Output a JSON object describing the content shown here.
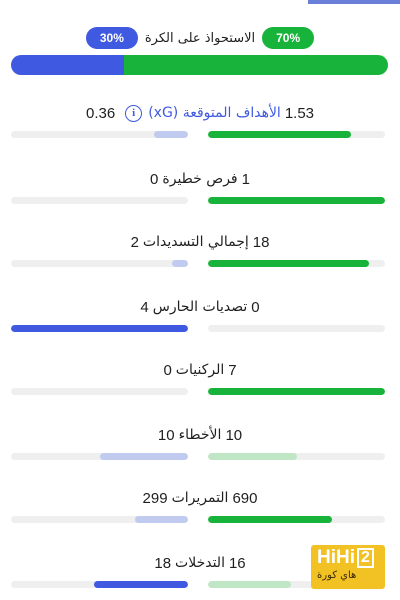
{
  "colors": {
    "home": "#17b33a",
    "away": "#3f5ae0",
    "home_light": "#bfe6c5",
    "away_light": "#c1cbef",
    "track": "#efefef"
  },
  "possession": {
    "label": "الاستحواذ على الكرة",
    "home": "70%",
    "away": "30%",
    "home_fraction": 0.7,
    "away_fraction": 0.3
  },
  "stats": [
    {
      "label": "الأهداف المتوقعة (xG)",
      "home": "1.53",
      "away": "0.36",
      "home_fraction": 0.81,
      "away_fraction": 0.19,
      "home_color": "green",
      "away_color": "lblue",
      "link": true,
      "icon": "info-icon"
    },
    {
      "label": "فرص خطيرة",
      "home": "1",
      "away": "0",
      "home_fraction": 1.0,
      "away_fraction": 0.0,
      "home_color": "green",
      "away_color": "lblue"
    },
    {
      "label": "إجمالي التسديدات",
      "home": "18",
      "away": "2",
      "home_fraction": 0.91,
      "away_fraction": 0.09,
      "home_color": "green",
      "away_color": "lblue"
    },
    {
      "label": "تصديات الحارس",
      "home": "0",
      "away": "4",
      "home_fraction": 0.0,
      "away_fraction": 1.0,
      "home_color": "lgreen",
      "away_color": "blue"
    },
    {
      "label": "الركنيات",
      "home": "7",
      "away": "0",
      "home_fraction": 1.0,
      "away_fraction": 0.0,
      "home_color": "green",
      "away_color": "lblue"
    },
    {
      "label": "الأخطاء",
      "home": "10",
      "away": "10",
      "home_fraction": 0.5,
      "away_fraction": 0.5,
      "home_color": "lgreen",
      "away_color": "lblue"
    },
    {
      "label": "التمريرات",
      "home": "690",
      "away": "299",
      "home_fraction": 0.7,
      "away_fraction": 0.3,
      "home_color": "green",
      "away_color": "lblue"
    },
    {
      "label": "التدخلات",
      "home": "16",
      "away": "18",
      "home_fraction": 0.47,
      "away_fraction": 0.53,
      "home_color": "lgreen",
      "away_color": "blue"
    }
  ],
  "watermark": {
    "logo": "HiHi",
    "logo_num": "2",
    "sub": "هاي كورة"
  }
}
